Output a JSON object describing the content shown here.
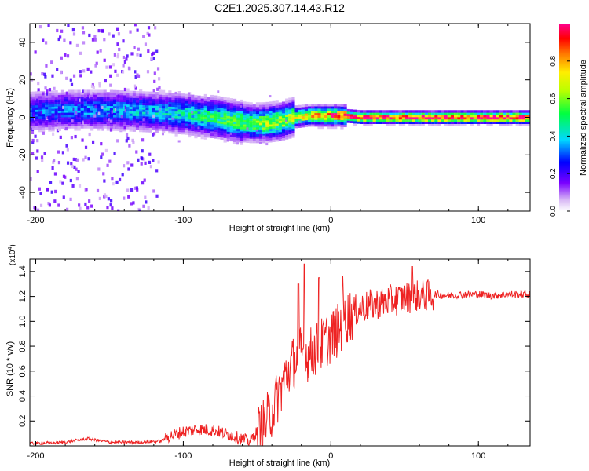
{
  "title": "C2E1.2025.307.14.43.R12",
  "chart_data": [
    {
      "type": "heatmap",
      "title": "C2E1.2025.307.14.43.R12",
      "xlabel": "Height of straight line (km)",
      "ylabel": "Frequency (Hz)",
      "xlim": [
        -204,
        135
      ],
      "ylim": [
        -50,
        50
      ],
      "xticks": [
        -200,
        -100,
        0,
        100
      ],
      "xtick_labels": [
        "-200",
        "-100",
        "0",
        "100"
      ],
      "yticks": [
        -40,
        -20,
        0,
        20,
        40
      ],
      "ytick_labels": [
        "-40",
        "-20",
        "0",
        "20",
        "40"
      ],
      "colorbar": {
        "label": "Normalized spectral amplitude",
        "range": [
          0,
          1
        ],
        "ticks": [
          0.0,
          0.2,
          0.4,
          0.6,
          0.8
        ],
        "tick_labels": [
          "0.0",
          "0.2",
          "0.4",
          "0.6",
          "0.8"
        ]
      },
      "ridge": {
        "x": [
          -204,
          -180,
          -150,
          -120,
          -100,
          -80,
          -65,
          -55,
          -45,
          -35,
          -25,
          -15,
          -5,
          5,
          20,
          40,
          70,
          100,
          135
        ],
        "center_hz": [
          3,
          4,
          4,
          3,
          2,
          0,
          -2,
          -3,
          -3,
          -2,
          0,
          1,
          1,
          1,
          0,
          0,
          0,
          0,
          0
        ],
        "peak_amplitude": [
          0.3,
          0.32,
          0.35,
          0.38,
          0.42,
          0.48,
          0.52,
          0.55,
          0.6,
          0.62,
          0.65,
          0.7,
          0.78,
          0.85,
          0.9,
          0.92,
          0.93,
          0.94,
          0.95
        ]
      }
    },
    {
      "type": "line",
      "xlabel": "Height of straight line (km)",
      "ylabel": "SNR (10 * v/v)",
      "y_multiplier": "(x10",
      "y_multiplier_exp": "4",
      "y_multiplier_close": ")",
      "xlim": [
        -204,
        135
      ],
      "ylim": [
        0,
        1.5
      ],
      "xticks": [
        -200,
        -100,
        0,
        100
      ],
      "xtick_labels": [
        "-200",
        "-100",
        "0",
        "100"
      ],
      "yticks": [
        0.2,
        0.4,
        0.6,
        0.8,
        1.0,
        1.2,
        1.4
      ],
      "ytick_labels": [
        "0.2",
        "0.4",
        "0.6",
        "0.8",
        "1.0",
        "1.2",
        "1.4"
      ],
      "series": [
        {
          "name": "SNR",
          "color": "#ee2222",
          "x": [
            -204,
            -180,
            -165,
            -150,
            -130,
            -115,
            -110,
            -100,
            -90,
            -80,
            -70,
            -60,
            -55,
            -50,
            -45,
            -40,
            -35,
            -30,
            -25,
            -20,
            -15,
            -10,
            -5,
            0,
            5,
            10,
            20,
            30,
            40,
            50,
            60,
            70,
            80,
            90,
            100,
            110,
            120,
            135
          ],
          "values": [
            0.02,
            0.03,
            0.06,
            0.03,
            0.03,
            0.04,
            0.08,
            0.12,
            0.14,
            0.13,
            0.1,
            0.06,
            0.04,
            0.12,
            0.2,
            0.3,
            0.45,
            0.6,
            0.7,
            0.78,
            0.75,
            0.8,
            0.85,
            0.9,
            0.95,
            1.05,
            1.12,
            1.15,
            1.18,
            1.2,
            1.22,
            1.22,
            1.21,
            1.22,
            1.22,
            1.21,
            1.22,
            1.22
          ],
          "spikes": [
            {
              "x": -18,
              "value": 1.46
            },
            {
              "x": -22,
              "value": 1.3
            },
            {
              "x": -8,
              "value": 1.35
            },
            {
              "x": 8,
              "value": 1.36
            },
            {
              "x": 55,
              "value": 1.44
            }
          ]
        }
      ]
    }
  ]
}
